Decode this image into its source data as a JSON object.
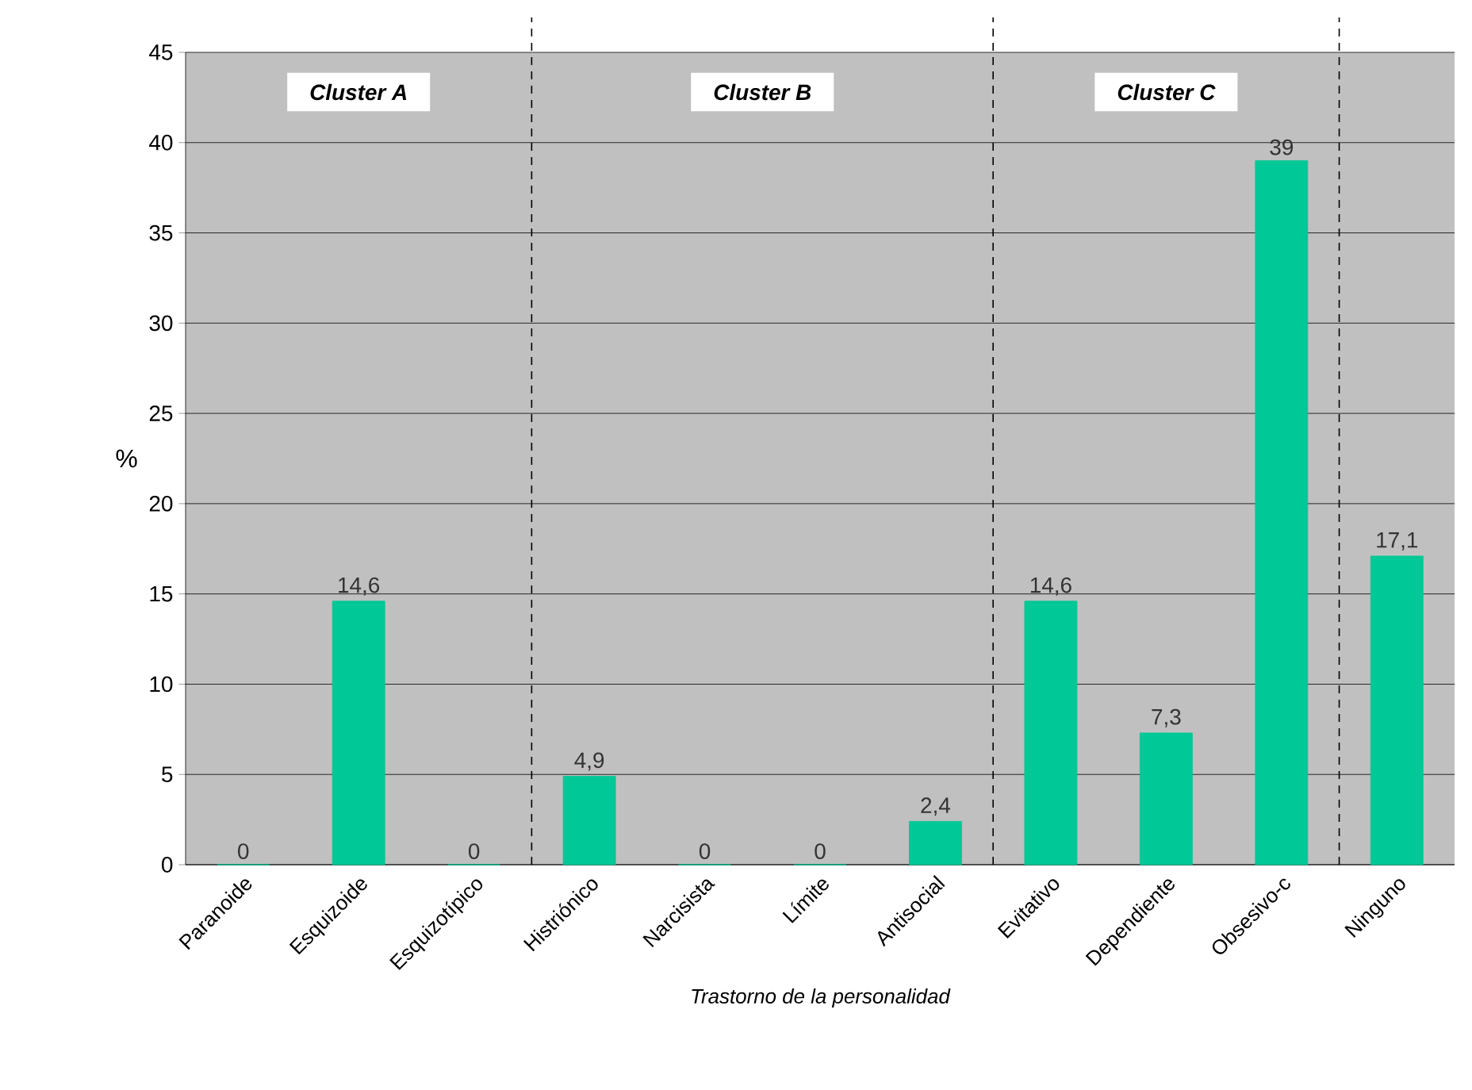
{
  "chart_data": {
    "type": "bar",
    "xlabel": "Trastorno de la personalidad",
    "ylabel": "%",
    "categories": [
      "Paranoide",
      "Esquizoide",
      "Esquizotípico",
      "Histriónico",
      "Narcisista",
      "Límite",
      "Antisocial",
      "Evitativo",
      "Dependiente",
      "Obsesivo-c",
      "Ninguno"
    ],
    "values": [
      0,
      14.6,
      0,
      4.9,
      0,
      0,
      2.4,
      14.6,
      7.3,
      39,
      17.1
    ],
    "value_labels": [
      "0",
      "14,6",
      "0",
      "4,9",
      "0",
      "0",
      "2,4",
      "14,6",
      "7,3",
      "39",
      "17,1"
    ],
    "color": "#00c896",
    "ylim": [
      0,
      45
    ],
    "yticks": [
      0,
      5,
      10,
      15,
      20,
      25,
      30,
      35,
      40,
      45
    ],
    "grid": "y",
    "annotations": [
      "Cluster A",
      "Cluster B",
      "Cluster C"
    ]
  }
}
